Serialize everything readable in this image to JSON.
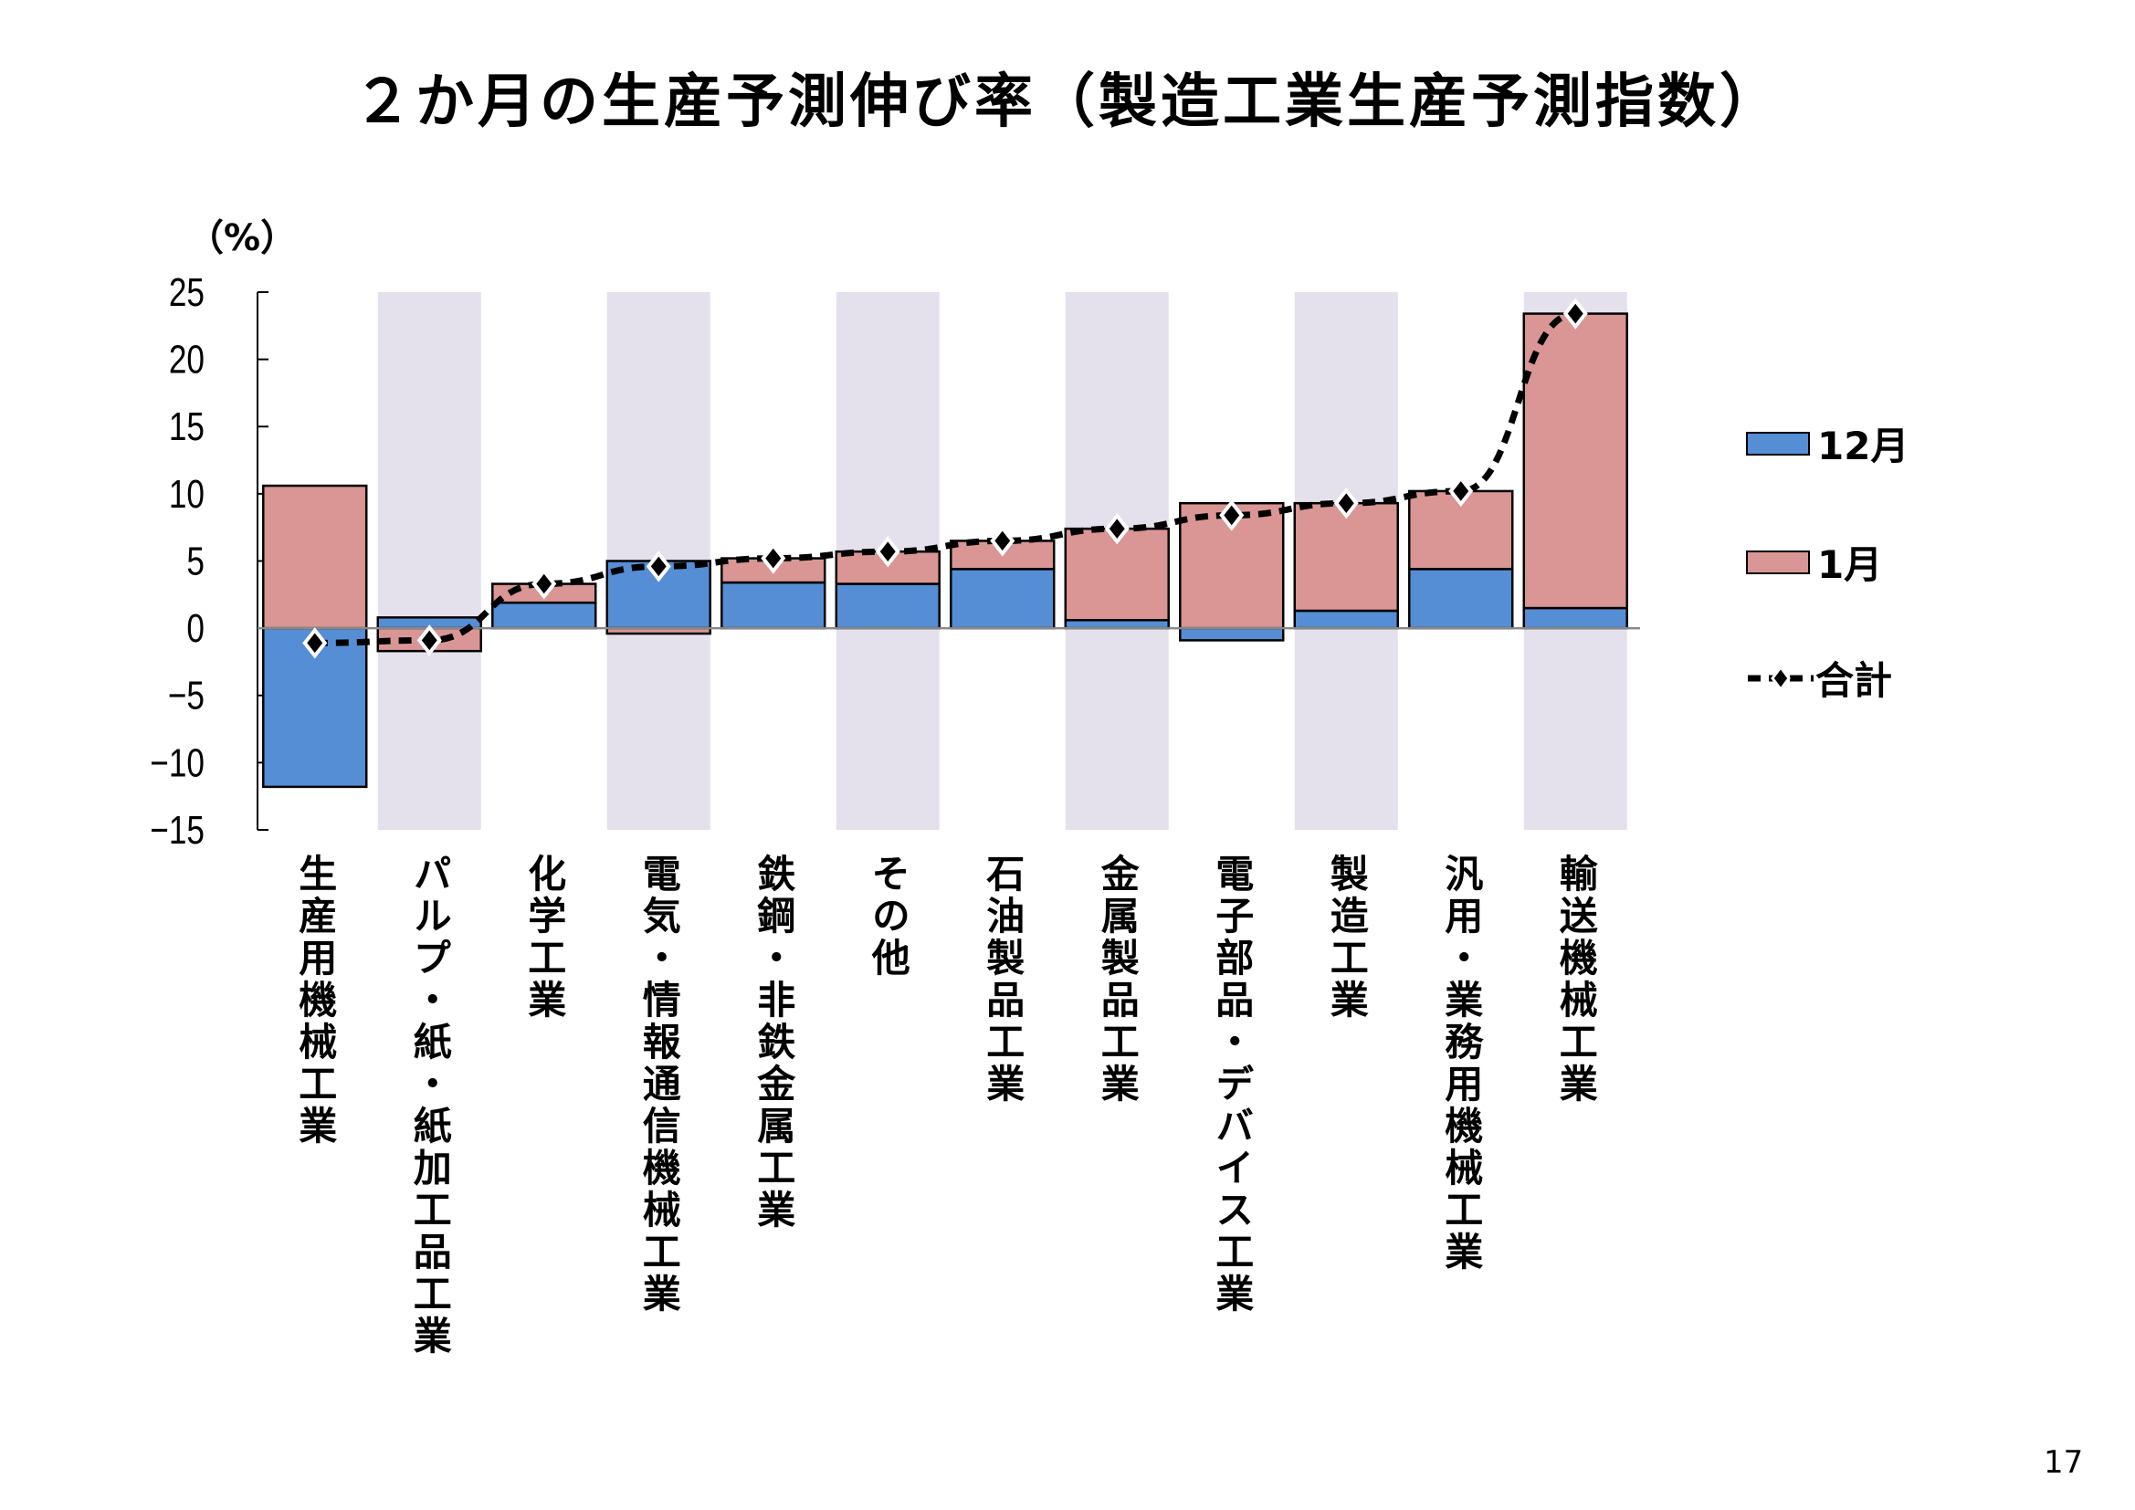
{
  "title": "２か月の生産予測伸び率（製造工業生産予測指数）",
  "page_number": "17",
  "chart_data": {
    "type": "bar",
    "stacked": true,
    "unit_label": "（%）",
    "ylim": [
      -15,
      25
    ],
    "yticks": [
      25,
      20,
      15,
      10,
      5,
      0,
      -5,
      -10,
      -15
    ],
    "legend_position": "right",
    "categories": [
      "生産用機械工業",
      "パルプ・紙・紙加工品工業",
      "化学工業",
      "電気・情報通信機械工業",
      "鉄鋼・非鉄金属工業",
      "その他",
      "石油製品工業",
      "金属製品工業",
      "電子部品・デバイス工業",
      "製造工業",
      "汎用・業務用機械工業",
      "輸送機械工業"
    ],
    "series": [
      {
        "name": "12月",
        "type": "bar",
        "color": "#558ed5",
        "values": [
          -11.8,
          0.8,
          1.9,
          5.0,
          3.4,
          3.3,
          4.4,
          0.6,
          -0.9,
          1.3,
          4.4,
          1.5
        ]
      },
      {
        "name": "1月",
        "type": "bar",
        "color": "#d99694",
        "values": [
          10.6,
          -1.7,
          1.4,
          -0.4,
          1.8,
          2.4,
          2.1,
          6.8,
          9.3,
          8.0,
          5.8,
          21.9
        ]
      },
      {
        "name": "合計",
        "type": "line",
        "style": "dashed",
        "marker": "diamond",
        "color": "#000000",
        "values": [
          -1.1,
          -0.9,
          3.3,
          4.6,
          5.2,
          5.7,
          6.5,
          7.4,
          8.4,
          9.3,
          10.2,
          23.4
        ]
      }
    ],
    "band_color": "#e4e0ec"
  }
}
